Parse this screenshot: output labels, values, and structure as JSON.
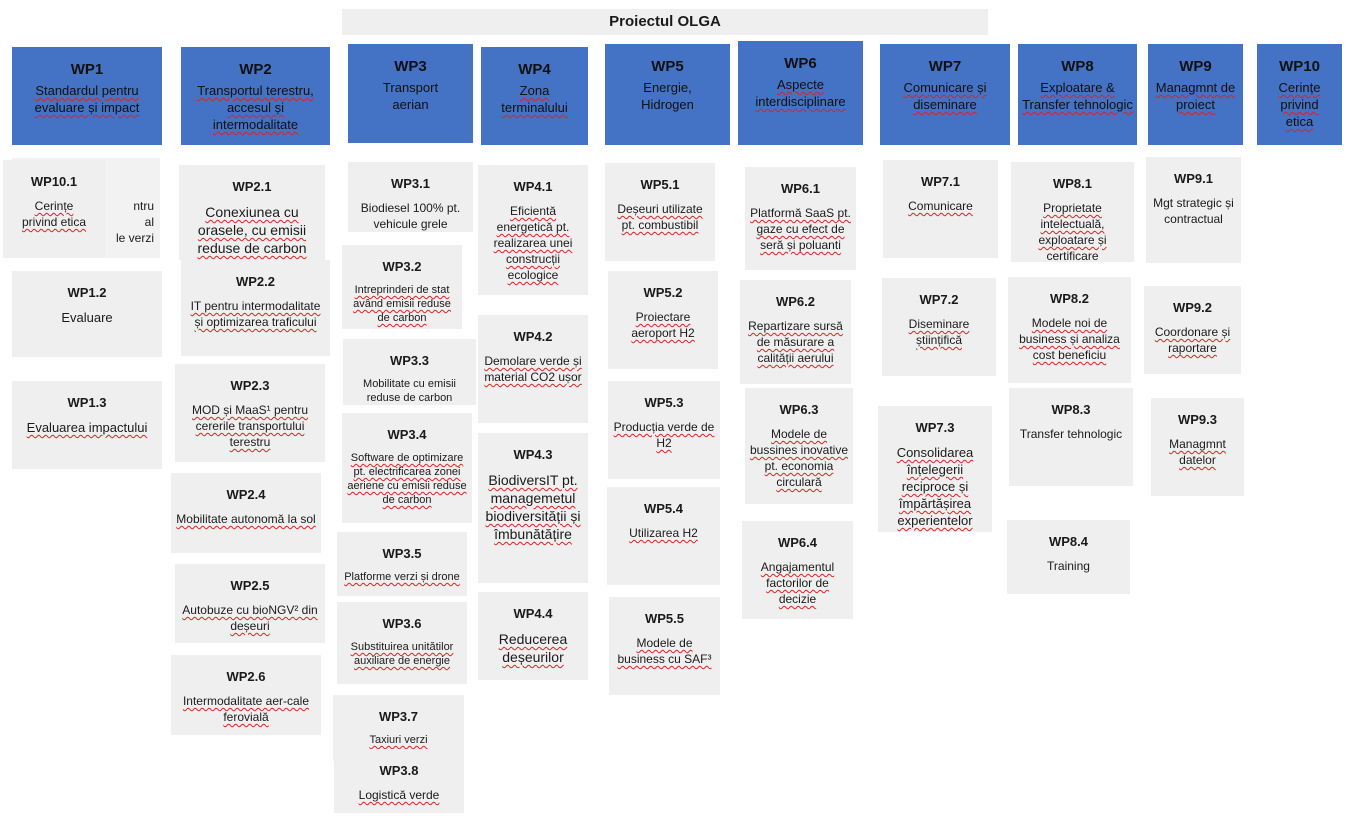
{
  "title": "Proiectul OLGA",
  "wps": [
    {
      "code": "WP1",
      "name": "Standardul pentru evaluare și impact"
    },
    {
      "code": "WP2",
      "name": "Transportul terestru, accesul și intermodalitate"
    },
    {
      "code": "WP3",
      "name": "Transport aerian"
    },
    {
      "code": "WP4",
      "name": "Zona terminalului"
    },
    {
      "code": "WP5",
      "name": "Energie, Hidrogen"
    },
    {
      "code": "WP6",
      "name": "Aspecte interdisciplinare"
    },
    {
      "code": "WP7",
      "name": "Comunicare și diseminare"
    },
    {
      "code": "WP8",
      "name": "Exploatare & Transfer tehnologic"
    },
    {
      "code": "WP9",
      "name": "Managmnt de proiect"
    },
    {
      "code": "WP10",
      "name": "Cerințe privind etica"
    }
  ],
  "tasks": {
    "wp1": [
      {
        "code": "WP10.1",
        "name": "Cerințe privind etica",
        "behind": "ntru\nal\nle verzi"
      },
      {
        "code": "WP1.2",
        "name": "Evaluare"
      },
      {
        "code": "WP1.3",
        "name": "Evaluarea impactului"
      }
    ],
    "wp2": [
      {
        "code": "WP2.1",
        "name": "Conexiunea cu orasele, cu emisii reduse de carbon"
      },
      {
        "code": "WP2.2",
        "name": "IT pentru intermodalitate și optimizarea traficului"
      },
      {
        "code": "WP2.3",
        "name": "MOD și MaaS¹ pentru cererile transportului terestru"
      },
      {
        "code": "WP2.4",
        "name": "Mobilitate autonomă la sol"
      },
      {
        "code": "WP2.5",
        "name": "Autobuze cu bioNGV² din deșeuri"
      },
      {
        "code": "WP2.6",
        "name": "Intermodalitate aer-cale ferovială"
      }
    ],
    "wp3": [
      {
        "code": "WP3.1",
        "name": "Biodiesel 100% pt. vehicule grele"
      },
      {
        "code": "WP3.2",
        "name": "Intreprinderi de stat având emisii reduse de carbon"
      },
      {
        "code": "WP3.3",
        "name": "Mobilitate cu emisii reduse de carbon"
      },
      {
        "code": "WP3.4",
        "name": "Software de optimizare pt. electrificarea zonei aeriene cu emisii reduse de carbon"
      },
      {
        "code": "WP3.5",
        "name": "Platforme verzi și drone"
      },
      {
        "code": "WP3.6",
        "name": "Substituirea unitătilor auxiliare de energie"
      },
      {
        "code": "WP3.7",
        "name": "Taxiuri verzi"
      },
      {
        "code": "WP3.8",
        "name": "Logistică verde"
      }
    ],
    "wp4": [
      {
        "code": "WP4.1",
        "name": "Eficientă energetică pt. realizarea unei construcții ecologice"
      },
      {
        "code": "WP4.2",
        "name": "Demolare verde și material CO2 ușor"
      },
      {
        "code": "WP4.3",
        "name": "BiodiversIT pt. managemetul biodiversității și îmbunătățire"
      },
      {
        "code": "WP4.4",
        "name": "Reducerea deșeurilor"
      }
    ],
    "wp5": [
      {
        "code": "WP5.1",
        "name": "Deșeuri utilizate pt. combustibil"
      },
      {
        "code": "WP5.2",
        "name": "Proiectare aeroport H2"
      },
      {
        "code": "WP5.3",
        "name": "Producția verde de H2"
      },
      {
        "code": "WP5.4",
        "name": "Utilizarea H2"
      },
      {
        "code": "WP5.5",
        "name": "Modele de business cu SAF³"
      }
    ],
    "wp6": [
      {
        "code": "WP6.1",
        "name": "Platformă SaaS pt. gaze cu efect de seră și poluanti"
      },
      {
        "code": "WP6.2",
        "name": "Repartizare sursă de măsurare a calității aerului"
      },
      {
        "code": "WP6.3",
        "name": "Modele de bussines inovative pt. economia circulară"
      },
      {
        "code": "WP6.4",
        "name": "Angajamentul factorilor de decizie"
      }
    ],
    "wp7": [
      {
        "code": "WP7.1",
        "name": "Comunicare"
      },
      {
        "code": "WP7.2",
        "name": "Diseminare științifică"
      },
      {
        "code": "WP7.3",
        "name": "Consolidarea înțelegerii reciproce și împărtășirea experientelor"
      }
    ],
    "wp8": [
      {
        "code": "WP8.1",
        "name": "Proprietate intelectuală, exploatare și certificare"
      },
      {
        "code": "WP8.2",
        "name": "Modele noi de business și analiza cost beneficiu"
      },
      {
        "code": "WP8.3",
        "name": "Transfer tehnologic"
      },
      {
        "code": "WP8.4",
        "name": "Training"
      }
    ],
    "wp9": [
      {
        "code": "WP9.1",
        "name": "Mgt strategic și contractual"
      },
      {
        "code": "WP9.2",
        "name": "Coordonare și raportare"
      },
      {
        "code": "WP9.3",
        "name": "Managmnt datelor"
      }
    ]
  }
}
